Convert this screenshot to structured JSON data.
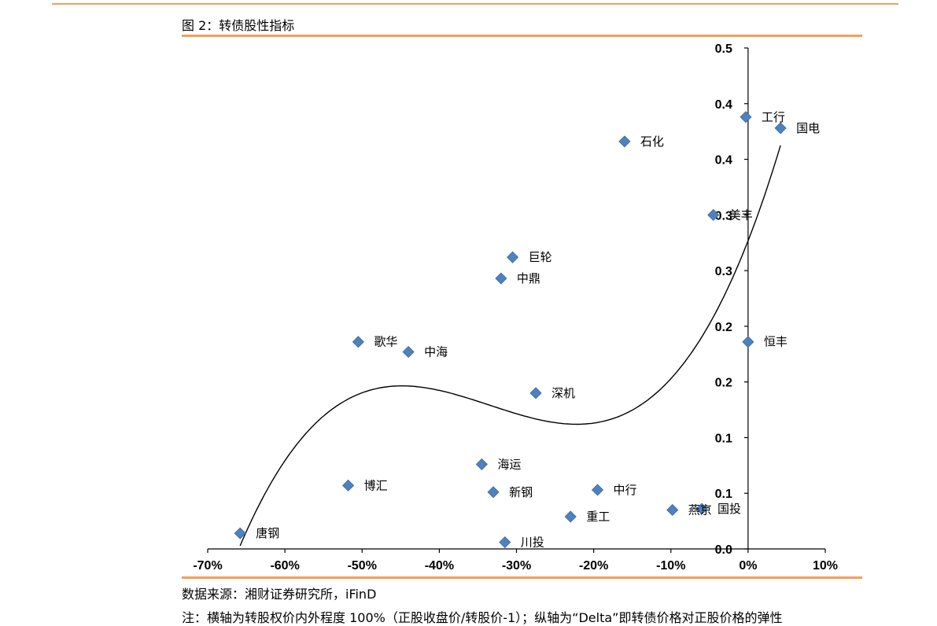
{
  "figure": {
    "title": "图 2：转债股性指标",
    "source": "数据来源：湘财证券研究所，iFinD",
    "note": "注：横轴为转股权价内外程度 100%（正股收盘价/转股价-1）；纵轴为“Delta”即转债价格对正股价格的弹性"
  },
  "chart_data": {
    "type": "scatter",
    "title": "",
    "xlabel": "",
    "ylabel": "",
    "xlim": [
      -70,
      10
    ],
    "ylim": [
      0.0,
      0.45
    ],
    "x_ticks": [
      "-70%",
      "-60%",
      "-50%",
      "-40%",
      "-30%",
      "-20%",
      "-10%",
      "0%",
      "10%"
    ],
    "y_ticks": [
      "0.0",
      "0.1",
      "0.1",
      "0.2",
      "0.2",
      "0.3",
      "0.3",
      "0.4",
      "0.4",
      "0.5"
    ],
    "points": [
      {
        "label": "工行",
        "x": -0.3,
        "y": 0.388
      },
      {
        "label": "国电",
        "x": 4.2,
        "y": 0.378
      },
      {
        "label": "石化",
        "x": -16.0,
        "y": 0.366
      },
      {
        "label": "美丰",
        "x": -4.5,
        "y": 0.3
      },
      {
        "label": "巨轮",
        "x": -30.5,
        "y": 0.262
      },
      {
        "label": "中鼎",
        "x": -32.0,
        "y": 0.243
      },
      {
        "label": "恒丰",
        "x": 0.0,
        "y": 0.186
      },
      {
        "label": "歌华",
        "x": -50.5,
        "y": 0.186
      },
      {
        "label": "中海",
        "x": -44.0,
        "y": 0.177
      },
      {
        "label": "深机",
        "x": -27.5,
        "y": 0.14
      },
      {
        "label": "海运",
        "x": -34.5,
        "y": 0.076
      },
      {
        "label": "博汇",
        "x": -51.8,
        "y": 0.057
      },
      {
        "label": "新钢",
        "x": -33.0,
        "y": 0.051
      },
      {
        "label": "中行",
        "x": -19.5,
        "y": 0.053
      },
      {
        "label": "国投",
        "x": -6.0,
        "y": 0.036
      },
      {
        "label": "燕京",
        "x": -9.8,
        "y": 0.035
      },
      {
        "label": "重工",
        "x": -23.0,
        "y": 0.029
      },
      {
        "label": "唐钢",
        "x": -65.8,
        "y": 0.014
      },
      {
        "label": "川投",
        "x": -31.5,
        "y": 0.006
      }
    ],
    "trendline": {
      "type": "polynomial",
      "order": 3,
      "from_x": -65.8,
      "to_x": 4.2
    },
    "marker_color": "#4f81bd",
    "line_color": "#000000",
    "grid": false,
    "legend": "none"
  }
}
